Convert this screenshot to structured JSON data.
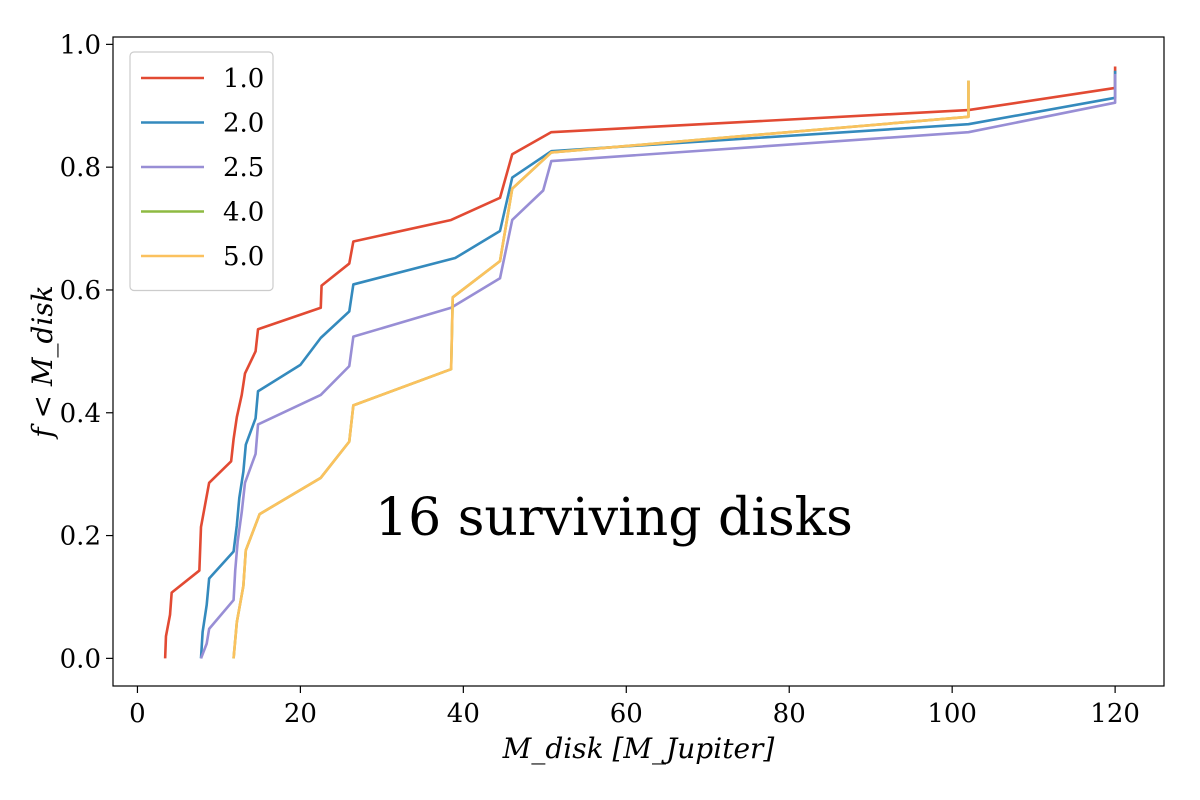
{
  "chart_data": {
    "type": "line",
    "xlabel": "M_disk [M_Jupiter]",
    "ylabel": "f < M_disk",
    "xlim": [
      -3,
      126
    ],
    "ylim": [
      -0.045,
      1.012
    ],
    "xticks": [
      0,
      20,
      40,
      60,
      80,
      100,
      120
    ],
    "yticks": [
      0.0,
      0.2,
      0.4,
      0.6,
      0.8,
      1.0
    ],
    "xtick_labels": [
      "0",
      "20",
      "40",
      "60",
      "80",
      "100",
      "120"
    ],
    "ytick_labels": [
      "0.0",
      "0.2",
      "0.4",
      "0.6",
      "0.8",
      "1.0"
    ],
    "annotation": "16 surviving disks",
    "legend_position": "top-left",
    "grid": false,
    "series": [
      {
        "name": "1.0",
        "color": "#E24A33",
        "points": [
          [
            3.4,
            0.0
          ],
          [
            3.5,
            0.036
          ],
          [
            4.0,
            0.071
          ],
          [
            4.2,
            0.107
          ],
          [
            7.6,
            0.143
          ],
          [
            7.8,
            0.214
          ],
          [
            8.3,
            0.25
          ],
          [
            8.8,
            0.286
          ],
          [
            11.5,
            0.321
          ],
          [
            11.8,
            0.357
          ],
          [
            12.2,
            0.393
          ],
          [
            12.8,
            0.429
          ],
          [
            13.2,
            0.464
          ],
          [
            14.5,
            0.5
          ],
          [
            14.8,
            0.536
          ],
          [
            22.5,
            0.571
          ],
          [
            22.6,
            0.607
          ],
          [
            26.0,
            0.643
          ],
          [
            26.5,
            0.679
          ],
          [
            38.5,
            0.714
          ],
          [
            44.5,
            0.75
          ],
          [
            46.0,
            0.821
          ],
          [
            50.8,
            0.857
          ],
          [
            102.0,
            0.893
          ],
          [
            120.0,
            0.929
          ],
          [
            120.0,
            0.964
          ]
        ]
      },
      {
        "name": "2.0",
        "color": "#348ABD",
        "points": [
          [
            7.8,
            0.0
          ],
          [
            8.0,
            0.043
          ],
          [
            8.5,
            0.087
          ],
          [
            8.8,
            0.13
          ],
          [
            11.8,
            0.174
          ],
          [
            12.2,
            0.217
          ],
          [
            12.5,
            0.261
          ],
          [
            13.0,
            0.304
          ],
          [
            13.3,
            0.348
          ],
          [
            14.5,
            0.391
          ],
          [
            14.8,
            0.435
          ],
          [
            20.0,
            0.478
          ],
          [
            22.5,
            0.522
          ],
          [
            26.0,
            0.565
          ],
          [
            26.5,
            0.609
          ],
          [
            39.0,
            0.652
          ],
          [
            44.5,
            0.696
          ],
          [
            46.0,
            0.783
          ],
          [
            50.8,
            0.826
          ],
          [
            102.0,
            0.87
          ],
          [
            120.0,
            0.913
          ],
          [
            120.0,
            0.957
          ]
        ]
      },
      {
        "name": "2.5",
        "color": "#988ED5",
        "points": [
          [
            7.8,
            0.0
          ],
          [
            8.5,
            0.024
          ],
          [
            8.8,
            0.048
          ],
          [
            11.8,
            0.095
          ],
          [
            12.0,
            0.143
          ],
          [
            12.3,
            0.19
          ],
          [
            12.8,
            0.238
          ],
          [
            13.2,
            0.286
          ],
          [
            14.5,
            0.333
          ],
          [
            14.8,
            0.381
          ],
          [
            22.5,
            0.429
          ],
          [
            26.0,
            0.476
          ],
          [
            26.5,
            0.524
          ],
          [
            38.5,
            0.571
          ],
          [
            44.5,
            0.619
          ],
          [
            46.0,
            0.714
          ],
          [
            49.8,
            0.762
          ],
          [
            50.8,
            0.81
          ],
          [
            102.0,
            0.857
          ],
          [
            120.0,
            0.905
          ],
          [
            120.0,
            0.952
          ]
        ]
      },
      {
        "name": "4.0",
        "color": "#8EBA42",
        "points": [
          [
            11.8,
            0.0
          ],
          [
            12.2,
            0.059
          ],
          [
            13.0,
            0.118
          ],
          [
            13.3,
            0.176
          ],
          [
            15.0,
            0.235
          ],
          [
            22.5,
            0.294
          ],
          [
            26.0,
            0.353
          ],
          [
            26.5,
            0.412
          ],
          [
            38.5,
            0.471
          ],
          [
            38.7,
            0.588
          ],
          [
            44.5,
            0.647
          ],
          [
            46.0,
            0.765
          ],
          [
            50.8,
            0.824
          ],
          [
            102.0,
            0.882
          ],
          [
            102.0,
            0.941
          ]
        ]
      },
      {
        "name": "5.0",
        "color": "#FBC15E",
        "points": [
          [
            11.8,
            0.0
          ],
          [
            12.2,
            0.059
          ],
          [
            13.0,
            0.118
          ],
          [
            13.3,
            0.176
          ],
          [
            15.0,
            0.235
          ],
          [
            22.5,
            0.294
          ],
          [
            26.0,
            0.353
          ],
          [
            26.5,
            0.412
          ],
          [
            38.5,
            0.471
          ],
          [
            38.7,
            0.588
          ],
          [
            44.5,
            0.647
          ],
          [
            46.0,
            0.765
          ],
          [
            50.8,
            0.824
          ],
          [
            102.0,
            0.882
          ],
          [
            102.0,
            0.941
          ]
        ]
      }
    ]
  }
}
